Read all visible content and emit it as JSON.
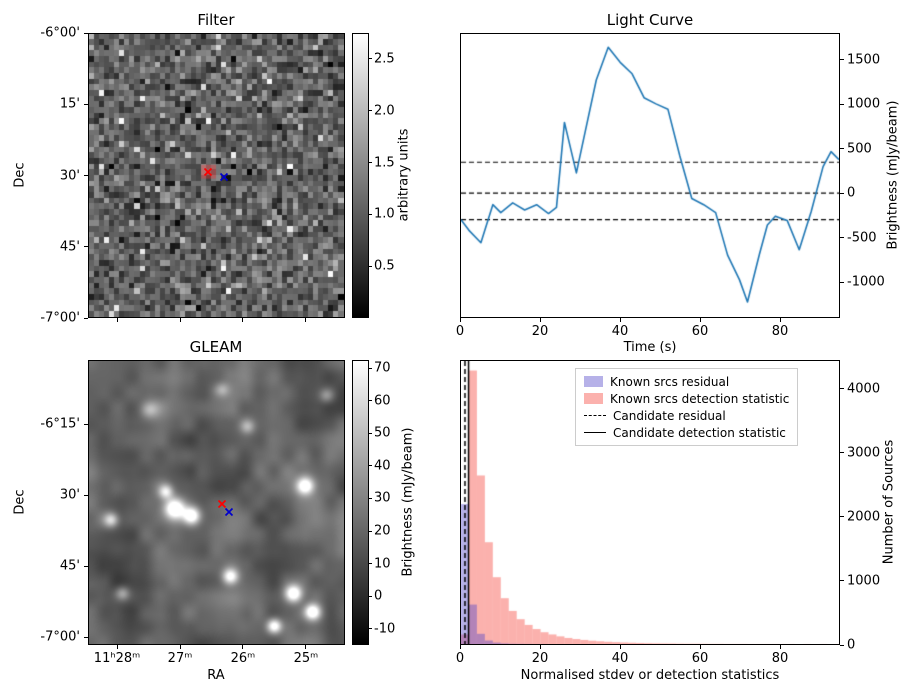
{
  "figure": {
    "background": "#ffffff"
  },
  "chart_data": [
    {
      "id": "filter",
      "type": "heatmap",
      "title": "Filter",
      "xlabel": "",
      "ylabel": "Dec",
      "yticks": [
        {
          "label": "-6°00'",
          "f": 0.0
        },
        {
          "label": "15'",
          "f": 0.25
        },
        {
          "label": "30'",
          "f": 0.5
        },
        {
          "label": "45'",
          "f": 0.75
        },
        {
          "label": "-7°00'",
          "f": 1.0
        }
      ],
      "xticks": [
        {
          "f": 0.113
        },
        {
          "f": 0.358
        },
        {
          "f": 0.603
        },
        {
          "f": 0.848
        }
      ],
      "colorbar": {
        "label": "arbitrary units",
        "vmin": 0,
        "vmax": 2.75,
        "ticks": [
          {
            "label": "2.5",
            "v": 2.5
          },
          {
            "label": "2.0",
            "v": 2.0
          },
          {
            "label": "1.5",
            "v": 1.5
          },
          {
            "label": "1.0",
            "v": 1.0
          },
          {
            "label": "0.5",
            "v": 0.5
          }
        ]
      },
      "noise": {
        "grid": 50,
        "mean": 1.05,
        "std": 0.33,
        "seed": 7
      },
      "highlight": {
        "fx": 0.44,
        "fy": 0.462,
        "fw": 0.058,
        "fh": 0.049,
        "color": "rgba(255,50,50,0.35)"
      },
      "markers": [
        {
          "name": "red",
          "color": "#ff0000",
          "fx": 0.465,
          "fy": 0.488
        },
        {
          "name": "blue",
          "color": "#0000cc",
          "fx": 0.53,
          "fy": 0.507
        }
      ]
    },
    {
      "id": "light-curve",
      "type": "line",
      "title": "Light Curve",
      "xlabel": "Time (s)",
      "ylabel": "Brightness (mJy/beam)",
      "xlim": [
        0,
        95
      ],
      "ylim": [
        -1400,
        1800
      ],
      "line_color": "#1f77b4",
      "x": [
        0,
        2,
        5,
        8,
        10,
        13,
        16,
        19,
        22,
        24,
        26,
        29,
        31,
        34,
        37,
        40,
        43,
        46,
        49,
        52,
        55,
        58,
        61,
        64,
        67,
        70,
        72,
        75,
        77,
        79,
        82,
        85,
        88,
        91,
        93,
        95
      ],
      "y": [
        -300,
        -420,
        -560,
        -130,
        -220,
        -110,
        -190,
        -130,
        -230,
        -160,
        800,
        230,
        650,
        1280,
        1650,
        1480,
        1350,
        1080,
        1010,
        950,
        420,
        -60,
        -130,
        -220,
        -700,
        -980,
        -1230,
        -690,
        -360,
        -260,
        -310,
        -640,
        -210,
        300,
        470,
        380
      ],
      "dashed_lines": [
        350,
        0,
        -300
      ],
      "xticks": [
        {
          "label": "0",
          "v": 0
        },
        {
          "label": "20",
          "v": 20
        },
        {
          "label": "40",
          "v": 40
        },
        {
          "label": "60",
          "v": 60
        },
        {
          "label": "80",
          "v": 80
        }
      ],
      "yticks": [
        {
          "label": "1500",
          "v": 1500
        },
        {
          "label": "1000",
          "v": 1000
        },
        {
          "label": "500",
          "v": 500
        },
        {
          "label": "0",
          "v": 0
        },
        {
          "label": "-500",
          "v": -500
        },
        {
          "label": "-1000",
          "v": -1000
        }
      ]
    },
    {
      "id": "gleam",
      "type": "heatmap",
      "title": "GLEAM",
      "xlabel": "RA",
      "ylabel": "Dec",
      "xticks": [
        {
          "label": "11ʰ28ᵐ",
          "f": 0.113
        },
        {
          "label": "27ᵐ",
          "f": 0.358
        },
        {
          "label": "26ᵐ",
          "f": 0.603
        },
        {
          "label": "25ᵐ",
          "f": 0.848
        }
      ],
      "yticks": [
        {
          "label": "-6°15'",
          "f": 0.225
        },
        {
          "label": "30'",
          "f": 0.474
        },
        {
          "label": "45'",
          "f": 0.723
        },
        {
          "label": "-7°00'",
          "f": 0.972
        }
      ],
      "colorbar": {
        "label": "Brightness (mJy/beam)",
        "vmin": -15,
        "vmax": 72.5,
        "ticks": [
          {
            "label": "70",
            "v": 70
          },
          {
            "label": "60",
            "v": 60
          },
          {
            "label": "50",
            "v": 50
          },
          {
            "label": "40",
            "v": 40
          },
          {
            "label": "30",
            "v": 30
          },
          {
            "label": "20",
            "v": 20
          },
          {
            "label": "10",
            "v": 10
          },
          {
            "label": "0",
            "v": 0
          },
          {
            "label": "-10",
            "v": -10
          }
        ]
      },
      "background": {
        "base": 2,
        "seed": 11,
        "octave1": {
          "grid": 7,
          "amp": 22
        },
        "octave2": {
          "grid": 18,
          "amp": 12
        }
      },
      "sources": [
        {
          "fx": 0.335,
          "fy": 0.52,
          "sigma": 7,
          "amp": 75
        },
        {
          "fx": 0.4,
          "fy": 0.545,
          "sigma": 6,
          "amp": 70
        },
        {
          "fx": 0.3,
          "fy": 0.46,
          "sigma": 5,
          "amp": 45
        },
        {
          "fx": 0.845,
          "fy": 0.44,
          "sigma": 6,
          "amp": 65
        },
        {
          "fx": 0.553,
          "fy": 0.76,
          "sigma": 5.5,
          "amp": 60
        },
        {
          "fx": 0.8,
          "fy": 0.82,
          "sigma": 6,
          "amp": 72
        },
        {
          "fx": 0.875,
          "fy": 0.885,
          "sigma": 5.5,
          "amp": 68
        },
        {
          "fx": 0.725,
          "fy": 0.935,
          "sigma": 5,
          "amp": 60
        },
        {
          "fx": 0.085,
          "fy": 0.56,
          "sigma": 5,
          "amp": 42
        },
        {
          "fx": 0.235,
          "fy": 0.17,
          "sigma": 6,
          "amp": 30
        },
        {
          "fx": 0.62,
          "fy": 0.23,
          "sigma": 5,
          "amp": 26
        },
        {
          "fx": 0.13,
          "fy": 0.82,
          "sigma": 5,
          "amp": 30
        },
        {
          "fx": 0.93,
          "fy": 0.12,
          "sigma": 5,
          "amp": 24
        },
        {
          "fx": 0.52,
          "fy": 0.1,
          "sigma": 5,
          "amp": 22
        }
      ],
      "markers": [
        {
          "name": "red",
          "color": "#ff0000",
          "fx": 0.521,
          "fy": 0.505
        },
        {
          "name": "blue",
          "color": "#0000cc",
          "fx": 0.549,
          "fy": 0.535
        }
      ]
    },
    {
      "id": "histogram",
      "type": "histogram",
      "title": "",
      "xlabel": "Normalised stdev or detection statistics",
      "ylabel": "Number of Sources",
      "xlim": [
        0,
        95
      ],
      "ylim": [
        0,
        4450
      ],
      "bin_width": 2,
      "series": [
        {
          "name": "Known srcs residual",
          "color": "rgba(80,70,200,0.42)",
          "values": [
            2200,
            620,
            160,
            55,
            22,
            10,
            5,
            3,
            2,
            1,
            1,
            0,
            0,
            0,
            0,
            0,
            0,
            0,
            0,
            0,
            0,
            0,
            0,
            0,
            0,
            0,
            0,
            0,
            0,
            0,
            0,
            0,
            0,
            0,
            0,
            0,
            0,
            0,
            0,
            0,
            0,
            0,
            0,
            0,
            0,
            0,
            0,
            0
          ]
        },
        {
          "name": "Known srcs detection statistic",
          "color": "rgba(245,70,60,0.42)",
          "values": [
            150,
            4300,
            2650,
            1600,
            1050,
            720,
            520,
            390,
            300,
            235,
            185,
            150,
            120,
            95,
            78,
            64,
            52,
            43,
            35,
            29,
            24,
            20,
            16,
            13,
            11,
            9,
            8,
            6,
            5,
            5,
            4,
            3,
            3,
            2,
            2,
            2,
            1,
            1,
            1,
            1,
            1,
            1,
            0,
            1,
            0,
            1,
            0,
            1
          ]
        }
      ],
      "vlines": [
        {
          "name": "Candidate residual",
          "style": "dashed",
          "x": 1.0
        },
        {
          "name": "Candidate detection statistic",
          "style": "solid",
          "x": 1.9
        }
      ],
      "xticks": [
        {
          "label": "0",
          "v": 0
        },
        {
          "label": "20",
          "v": 20
        },
        {
          "label": "40",
          "v": 40
        },
        {
          "label": "60",
          "v": 60
        },
        {
          "label": "80",
          "v": 80
        }
      ],
      "yticks": [
        {
          "label": "0",
          "v": 0
        },
        {
          "label": "1000",
          "v": 1000
        },
        {
          "label": "2000",
          "v": 2000
        },
        {
          "label": "3000",
          "v": 3000
        },
        {
          "label": "4000",
          "v": 4000
        }
      ]
    }
  ]
}
